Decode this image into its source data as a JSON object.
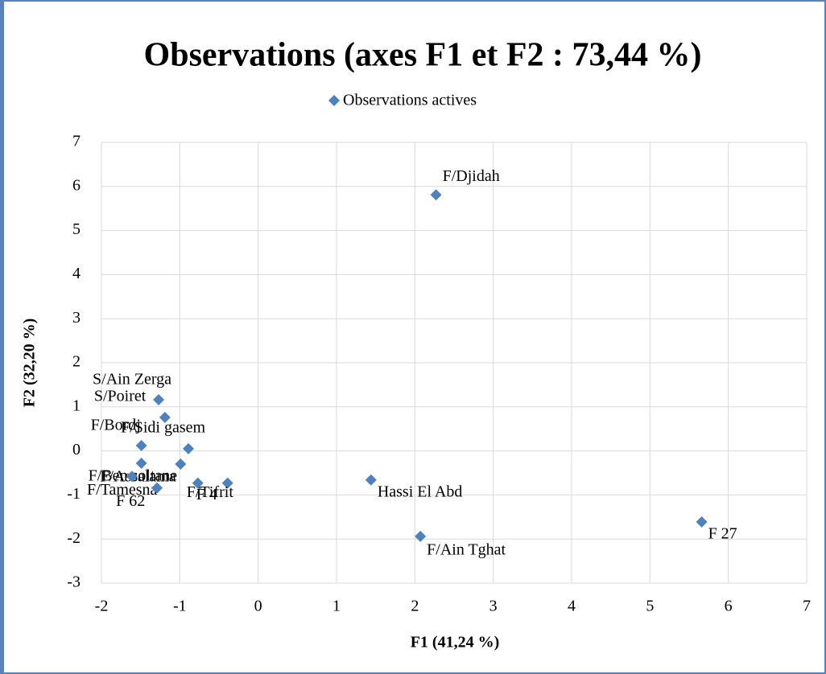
{
  "chart_data": {
    "type": "scatter",
    "title": "Observations (axes F1 et F2 : 73,44 %)",
    "xlabel": "F1 (41,24 %)",
    "ylabel": "F2 (32,20 %)",
    "series": [
      {
        "name": "Observations actives",
        "color": "#4f81bd",
        "labels": [
          "F/Djidah",
          "Hassi El Abd",
          "F/Ain Tghat",
          "F 27",
          "S/Ain Zerga",
          "S/Poiret",
          "F/Bordj",
          "F/Sidi gasem",
          "F/Ben soltane",
          "F/Assalama",
          "F/Tamesna",
          "F 4",
          "F/Tifrit",
          "F 62"
        ],
        "x": [
          2.27,
          1.44,
          2.07,
          5.66,
          -1.27,
          -1.19,
          -1.49,
          -0.89,
          -1.49,
          -0.99,
          -1.61,
          -0.39,
          -0.77,
          -1.29
        ],
        "values": [
          5.81,
          -0.66,
          -1.94,
          -1.61,
          1.16,
          0.76,
          0.12,
          0.05,
          -0.28,
          -0.3,
          -0.58,
          -0.73,
          -0.73,
          -0.84
        ]
      }
    ],
    "xlim": [
      -2,
      7
    ],
    "xticks": [
      -2,
      -1,
      0,
      1,
      2,
      3,
      4,
      5,
      6,
      7
    ],
    "ylim": [
      -3,
      7
    ],
    "yticks": [
      -3,
      -2,
      -1,
      0,
      1,
      2,
      3,
      4,
      5,
      6,
      7
    ],
    "grid": true,
    "legend": "top"
  }
}
